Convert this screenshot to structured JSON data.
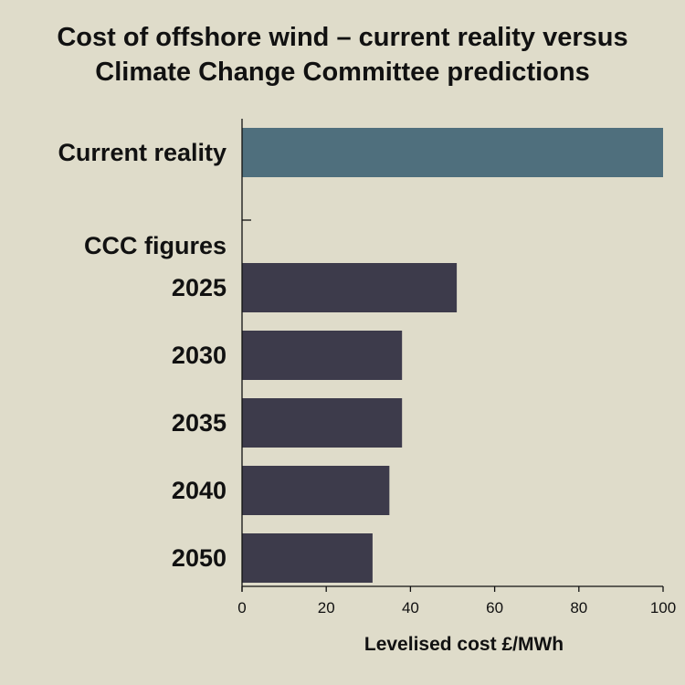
{
  "title_line1": "Cost of offshore wind – current reality versus",
  "title_line2": "Climate Change Committee predictions",
  "chart_data": {
    "type": "bar",
    "orientation": "horizontal",
    "title": "Cost of offshore wind – current reality versus Climate Change Committee predictions",
    "xlabel": "Levelised cost £/MWh",
    "ylabel": "",
    "xlim": [
      0,
      100
    ],
    "xticks": [
      0,
      20,
      40,
      60,
      80,
      100
    ],
    "group_label": "CCC figures",
    "categories": [
      "Current reality",
      "2025",
      "2030",
      "2035",
      "2040",
      "2050"
    ],
    "values": [
      100,
      51,
      38,
      38,
      35,
      31
    ],
    "colors": [
      "#4f6f7d",
      "#3d3b4b",
      "#3d3b4b",
      "#3d3b4b",
      "#3d3b4b",
      "#3d3b4b"
    ],
    "grid": false,
    "legend": "none"
  }
}
